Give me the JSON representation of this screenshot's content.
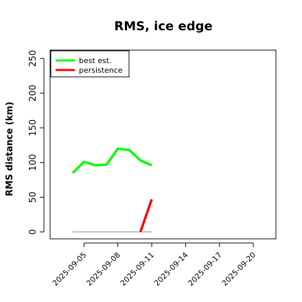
{
  "chart_data": {
    "type": "line",
    "title": "RMS, ice edge",
    "xlabel": "",
    "ylabel": "RMS distance (km)",
    "ylim": [
      -10,
      262
    ],
    "xlim": [
      "2025-09-02",
      "2025-09-22"
    ],
    "grid": false,
    "legend_position": "top-left",
    "x_tick_labels": [
      "2025-09-05",
      "2025-09-08",
      "2025-09-11",
      "2025-09-14",
      "2025-09-17",
      "2025-09-20"
    ],
    "y_tick_labels": [
      "0",
      "50",
      "100",
      "150",
      "200",
      "250"
    ],
    "series": [
      {
        "name": "best est.",
        "color": "#00ff00",
        "points": [
          {
            "x": "2025-09-04",
            "y": 85
          },
          {
            "x": "2025-09-05",
            "y": 101
          },
          {
            "x": "2025-09-06",
            "y": 96
          },
          {
            "x": "2025-09-07",
            "y": 97
          },
          {
            "x": "2025-09-08",
            "y": 120
          },
          {
            "x": "2025-09-09",
            "y": 118
          },
          {
            "x": "2025-09-10",
            "y": 103
          },
          {
            "x": "2025-09-11",
            "y": 96
          }
        ]
      },
      {
        "name": "persistence",
        "color": "#ff0000",
        "points": [
          {
            "x": "2025-09-10",
            "y": 0
          },
          {
            "x": "2025-09-11",
            "y": 47
          }
        ]
      }
    ],
    "baseline": {
      "color": "#808080",
      "x_start": "2025-09-04",
      "x_end": "2025-09-11",
      "y": 0
    }
  }
}
